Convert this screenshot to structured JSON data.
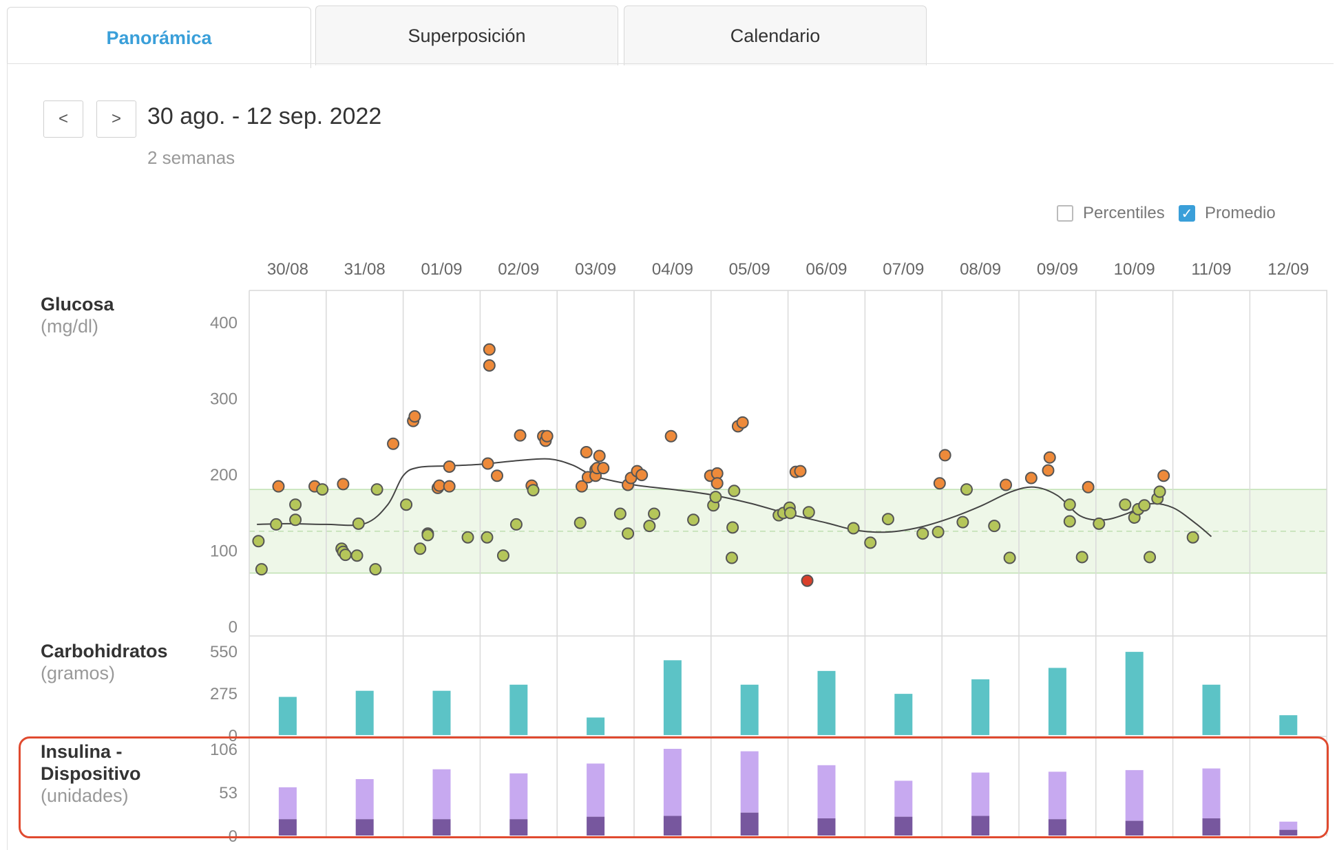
{
  "tabs": [
    "Panorámica",
    "Superposición",
    "Calendario"
  ],
  "nav": {
    "prev_label": "<",
    "next_label": ">",
    "date_range": "30 ago. - 12 sep. 2022",
    "duration": "2 semanas"
  },
  "options": {
    "percentiles": {
      "label": "Percentiles",
      "checked": false
    },
    "promedio": {
      "label": "Promedio",
      "checked": true
    }
  },
  "colors": {
    "accent": "#3a9fd9",
    "in_range": "#b5c65a",
    "high": "#ee8a3a",
    "low": "#d9402b",
    "carbs": "#5cc3c6",
    "bolus": "#c7a9f0",
    "basal": "#77579e",
    "highlight": "#e04a2f"
  },
  "chart_data": [
    {
      "type": "scatter",
      "title": "Glucosa",
      "ylabel": "(mg/dl)",
      "categories": [
        "30/08",
        "31/08",
        "01/09",
        "02/09",
        "03/09",
        "04/09",
        "05/09",
        "06/09",
        "07/09",
        "08/09",
        "09/09",
        "10/09",
        "11/09",
        "12/09"
      ],
      "yticks": [
        0,
        100,
        200,
        300,
        400
      ],
      "ylim": [
        0,
        420
      ],
      "target_range": [
        70,
        180
      ],
      "target_mid": 125,
      "points": [
        {
          "day": 0.12,
          "v": 112
        },
        {
          "day": 0.16,
          "v": 75
        },
        {
          "day": 0.35,
          "v": 134
        },
        {
          "day": 0.38,
          "v": 184
        },
        {
          "day": 0.6,
          "v": 160
        },
        {
          "day": 0.6,
          "v": 140
        },
        {
          "day": 0.85,
          "v": 184
        },
        {
          "day": 0.95,
          "v": 180
        },
        {
          "day": 1.22,
          "v": 187
        },
        {
          "day": 1.2,
          "v": 102
        },
        {
          "day": 1.22,
          "v": 98
        },
        {
          "day": 1.25,
          "v": 94
        },
        {
          "day": 1.4,
          "v": 93
        },
        {
          "day": 1.42,
          "v": 135
        },
        {
          "day": 1.64,
          "v": 75
        },
        {
          "day": 1.66,
          "v": 180
        },
        {
          "day": 1.87,
          "v": 240
        },
        {
          "day": 2.04,
          "v": 160
        },
        {
          "day": 2.13,
          "v": 270
        },
        {
          "day": 2.15,
          "v": 276
        },
        {
          "day": 2.22,
          "v": 102
        },
        {
          "day": 2.32,
          "v": 122
        },
        {
          "day": 2.45,
          "v": 182
        },
        {
          "day": 2.47,
          "v": 185
        },
        {
          "day": 2.32,
          "v": 120
        },
        {
          "day": 2.6,
          "v": 210
        },
        {
          "day": 2.6,
          "v": 184
        },
        {
          "day": 2.84,
          "v": 117
        },
        {
          "day": 3.09,
          "v": 117
        },
        {
          "day": 3.1,
          "v": 214
        },
        {
          "day": 3.12,
          "v": 343
        },
        {
          "day": 3.12,
          "v": 364
        },
        {
          "day": 3.22,
          "v": 198
        },
        {
          "day": 3.3,
          "v": 93
        },
        {
          "day": 3.47,
          "v": 134
        },
        {
          "day": 3.52,
          "v": 251
        },
        {
          "day": 3.67,
          "v": 185
        },
        {
          "day": 3.69,
          "v": 179
        },
        {
          "day": 3.82,
          "v": 250
        },
        {
          "day": 3.85,
          "v": 244
        },
        {
          "day": 3.87,
          "v": 250
        },
        {
          "day": 4.3,
          "v": 136
        },
        {
          "day": 4.32,
          "v": 184
        },
        {
          "day": 4.38,
          "v": 229
        },
        {
          "day": 4.4,
          "v": 196
        },
        {
          "day": 4.5,
          "v": 206
        },
        {
          "day": 4.5,
          "v": 198
        },
        {
          "day": 4.52,
          "v": 208
        },
        {
          "day": 4.55,
          "v": 224
        },
        {
          "day": 4.6,
          "v": 208
        },
        {
          "day": 4.82,
          "v": 148
        },
        {
          "day": 4.92,
          "v": 122
        },
        {
          "day": 4.92,
          "v": 186
        },
        {
          "day": 4.96,
          "v": 195
        },
        {
          "day": 5.04,
          "v": 204
        },
        {
          "day": 5.1,
          "v": 199
        },
        {
          "day": 5.2,
          "v": 132
        },
        {
          "day": 5.26,
          "v": 148
        },
        {
          "day": 5.48,
          "v": 250
        },
        {
          "day": 5.77,
          "v": 140
        },
        {
          "day": 5.99,
          "v": 198
        },
        {
          "day": 6.03,
          "v": 159
        },
        {
          "day": 6.06,
          "v": 170
        },
        {
          "day": 6.08,
          "v": 201
        },
        {
          "day": 6.08,
          "v": 188
        },
        {
          "day": 6.28,
          "v": 130
        },
        {
          "day": 6.27,
          "v": 90
        },
        {
          "day": 6.3,
          "v": 178
        },
        {
          "day": 6.35,
          "v": 263
        },
        {
          "day": 6.41,
          "v": 268
        },
        {
          "day": 6.88,
          "v": 146
        },
        {
          "day": 6.94,
          "v": 149
        },
        {
          "day": 7.02,
          "v": 156
        },
        {
          "day": 7.03,
          "v": 149
        },
        {
          "day": 7.1,
          "v": 203
        },
        {
          "day": 7.16,
          "v": 204
        },
        {
          "day": 7.25,
          "v": 60
        },
        {
          "day": 7.27,
          "v": 150
        },
        {
          "day": 7.85,
          "v": 129
        },
        {
          "day": 8.07,
          "v": 110
        },
        {
          "day": 8.3,
          "v": 141
        },
        {
          "day": 8.75,
          "v": 122
        },
        {
          "day": 8.95,
          "v": 124
        },
        {
          "day": 8.97,
          "v": 188
        },
        {
          "day": 9.04,
          "v": 225
        },
        {
          "day": 9.27,
          "v": 137
        },
        {
          "day": 9.32,
          "v": 180
        },
        {
          "day": 9.68,
          "v": 132
        },
        {
          "day": 9.88,
          "v": 90
        },
        {
          "day": 9.83,
          "v": 186
        },
        {
          "day": 10.16,
          "v": 195
        },
        {
          "day": 10.38,
          "v": 205
        },
        {
          "day": 10.4,
          "v": 222
        },
        {
          "day": 10.66,
          "v": 138
        },
        {
          "day": 10.66,
          "v": 160
        },
        {
          "day": 10.82,
          "v": 91
        },
        {
          "day": 10.9,
          "v": 183
        },
        {
          "day": 11.04,
          "v": 135
        },
        {
          "day": 11.38,
          "v": 160
        },
        {
          "day": 11.5,
          "v": 143
        },
        {
          "day": 11.55,
          "v": 154
        },
        {
          "day": 11.63,
          "v": 159
        },
        {
          "day": 11.7,
          "v": 91
        },
        {
          "day": 11.8,
          "v": 168
        },
        {
          "day": 11.83,
          "v": 177
        },
        {
          "day": 11.88,
          "v": 198
        },
        {
          "day": 12.26,
          "v": 117
        }
      ],
      "average_line": [
        {
          "day": 0.1,
          "v": 134
        },
        {
          "day": 0.5,
          "v": 135
        },
        {
          "day": 1.0,
          "v": 134
        },
        {
          "day": 1.5,
          "v": 135
        },
        {
          "day": 1.8,
          "v": 160
        },
        {
          "day": 2.0,
          "v": 198
        },
        {
          "day": 2.2,
          "v": 209
        },
        {
          "day": 2.6,
          "v": 211
        },
        {
          "day": 3.0,
          "v": 213
        },
        {
          "day": 3.5,
          "v": 218
        },
        {
          "day": 3.9,
          "v": 220
        },
        {
          "day": 4.2,
          "v": 212
        },
        {
          "day": 4.5,
          "v": 197
        },
        {
          "day": 5.0,
          "v": 186
        },
        {
          "day": 5.5,
          "v": 180
        },
        {
          "day": 6.0,
          "v": 173
        },
        {
          "day": 6.5,
          "v": 162
        },
        {
          "day": 7.0,
          "v": 148
        },
        {
          "day": 7.5,
          "v": 136
        },
        {
          "day": 7.9,
          "v": 126
        },
        {
          "day": 8.3,
          "v": 124
        },
        {
          "day": 8.7,
          "v": 130
        },
        {
          "day": 9.1,
          "v": 142
        },
        {
          "day": 9.5,
          "v": 158
        },
        {
          "day": 9.9,
          "v": 177
        },
        {
          "day": 10.2,
          "v": 183
        },
        {
          "day": 10.5,
          "v": 172
        },
        {
          "day": 10.8,
          "v": 145
        },
        {
          "day": 11.1,
          "v": 140
        },
        {
          "day": 11.4,
          "v": 148
        },
        {
          "day": 11.7,
          "v": 161
        },
        {
          "day": 12.0,
          "v": 156
        },
        {
          "day": 12.3,
          "v": 135
        },
        {
          "day": 12.5,
          "v": 118
        }
      ]
    },
    {
      "type": "bar",
      "title": "Carbohidratos",
      "ylabel": "(gramos)",
      "yticks": [
        0,
        275,
        550
      ],
      "ylim": [
        0,
        550
      ],
      "values": [
        250,
        290,
        290,
        330,
        115,
        490,
        330,
        420,
        270,
        365,
        440,
        545,
        330,
        130
      ]
    },
    {
      "type": "bar",
      "title": "Insulina -",
      "title_line2": "Dispositivo",
      "ylabel": "(unidades)",
      "yticks": [
        0,
        53,
        106
      ],
      "ylim": [
        0,
        106
      ],
      "series": [
        {
          "values": [
            20,
            20,
            20,
            20,
            23,
            24,
            28,
            21,
            23,
            24,
            20,
            18,
            21,
            7
          ]
        },
        {
          "values": [
            39,
            49,
            61,
            56,
            65,
            82,
            75,
            65,
            44,
            53,
            58,
            62,
            61,
            10
          ]
        }
      ]
    }
  ]
}
